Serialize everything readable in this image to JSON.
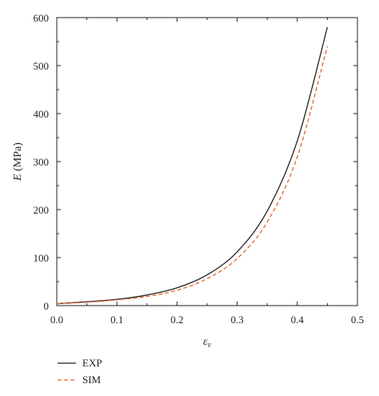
{
  "chart_data": {
    "type": "line",
    "xlabel": "ε",
    "xlabel_sub": "v",
    "ylabel_italic": "E",
    "ylabel_unit": " (MPa)",
    "xlim": [
      0.0,
      0.5
    ],
    "ylim": [
      0,
      600
    ],
    "x_ticks": [
      0.0,
      0.1,
      0.2,
      0.3,
      0.4,
      0.5
    ],
    "x_tick_labels": [
      "0.0",
      "0.1",
      "0.2",
      "0.3",
      "0.4",
      "0.5"
    ],
    "y_ticks": [
      0,
      100,
      200,
      300,
      400,
      500,
      600
    ],
    "y_tick_labels": [
      "0",
      "100",
      "200",
      "300",
      "400",
      "500",
      "600"
    ],
    "grid": false,
    "legend_position": "bottom-left, below the plot",
    "series": [
      {
        "name": "EXP",
        "color": "#222222",
        "dash": "solid",
        "x": [
          0.0,
          0.05,
          0.1,
          0.15,
          0.2,
          0.25,
          0.3,
          0.35,
          0.4,
          0.45
        ],
        "y": [
          4,
          8,
          13,
          22,
          37,
          64,
          112,
          197,
          343,
          580
        ]
      },
      {
        "name": "SIM",
        "color": "#E8632B",
        "dash": "dashed",
        "x": [
          0.0,
          0.05,
          0.1,
          0.15,
          0.2,
          0.25,
          0.3,
          0.35,
          0.4,
          0.45
        ],
        "y": [
          4,
          7,
          12,
          19,
          32,
          56,
          98,
          174,
          310,
          540
        ]
      }
    ]
  }
}
